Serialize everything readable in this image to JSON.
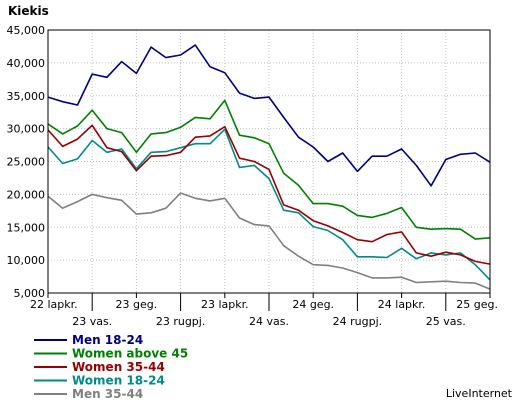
{
  "chart_data": {
    "type": "line",
    "title": "Kiekis",
    "ylim": [
      5000,
      45000
    ],
    "yticks": [
      "5,000",
      "10,000",
      "15,000",
      "20,000",
      "25,000",
      "30,000",
      "35,000",
      "40,000",
      "45,000"
    ],
    "x_tick_labels": [
      {
        "label": "22 lapkr.",
        "row": 1
      },
      {
        "label": "23 vas.",
        "row": 2
      },
      {
        "label": "23 geg.",
        "row": 1
      },
      {
        "label": "23 rugpj.",
        "row": 2
      },
      {
        "label": "23 lapkr.",
        "row": 1
      },
      {
        "label": "24 vas.",
        "row": 2
      },
      {
        "label": "24 geg.",
        "row": 1
      },
      {
        "label": "24 rugpj.",
        "row": 2
      },
      {
        "label": "24 lapkr.",
        "row": 1
      },
      {
        "label": "25 vas.",
        "row": 2
      },
      {
        "label": "25 geg.",
        "row": 1
      }
    ],
    "grid": true,
    "legend_position": "bottom-left",
    "series": [
      {
        "name": "Men 18-24",
        "color": "#000080",
        "values": [
          34800,
          34100,
          33600,
          38300,
          37800,
          40200,
          38400,
          42400,
          40800,
          41200,
          42700,
          39400,
          38500,
          35400,
          34600,
          34800,
          31700,
          28700,
          27200,
          25000,
          26300,
          23500,
          25800,
          25800,
          26900,
          24400,
          21300,
          25300,
          26100,
          26300,
          24900
        ]
      },
      {
        "name": "Women above 45",
        "color": "#008000",
        "values": [
          30700,
          29200,
          30400,
          32800,
          30000,
          29400,
          26400,
          29200,
          29400,
          30200,
          31700,
          31500,
          34300,
          29000,
          28600,
          27700,
          23200,
          21400,
          18600,
          18600,
          18200,
          16800,
          16500,
          17100,
          18000,
          15000,
          14700,
          14800,
          14700,
          13200,
          13400
        ]
      },
      {
        "name": "Women 35-44",
        "color": "#990000",
        "values": [
          29800,
          27300,
          28400,
          30500,
          27100,
          26500,
          23600,
          25800,
          25900,
          26400,
          28700,
          28900,
          30300,
          25500,
          25000,
          23800,
          18400,
          17600,
          16000,
          15200,
          14200,
          13100,
          12800,
          13900,
          14300,
          11100,
          10600,
          11200,
          10800,
          9800,
          9400
        ]
      },
      {
        "name": "Women 18-24",
        "color": "#008B8B",
        "values": [
          27200,
          24700,
          25400,
          28200,
          26400,
          26900,
          23900,
          26400,
          26500,
          27100,
          27700,
          27700,
          29900,
          24100,
          24400,
          22400,
          17600,
          17200,
          15100,
          14500,
          13100,
          10500,
          10500,
          10400,
          11800,
          10200,
          11100,
          10800,
          11100,
          9300,
          7000
        ]
      },
      {
        "name": "Men 35-44",
        "color": "#808080",
        "values": [
          19700,
          17900,
          18900,
          20000,
          19500,
          19100,
          17000,
          17200,
          17900,
          20200,
          19400,
          19000,
          19400,
          16400,
          15400,
          15200,
          12200,
          10600,
          9300,
          9200,
          8800,
          8100,
          7300,
          7300,
          7400,
          6600,
          6700,
          6800,
          6600,
          6500,
          5600
        ]
      }
    ]
  },
  "footer": {
    "brand": "LiveInternet"
  }
}
